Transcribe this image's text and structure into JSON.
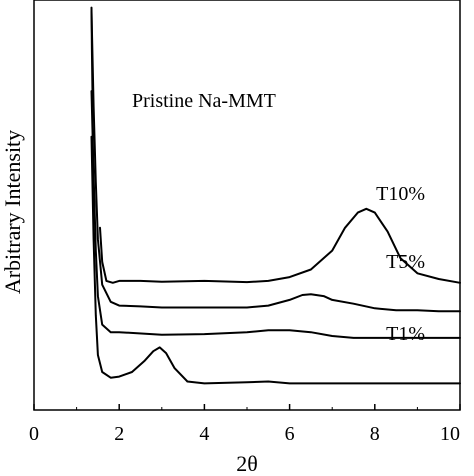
{
  "chart_data": {
    "type": "line",
    "title": "",
    "xlabel": "2θ",
    "ylabel": "Arbitrary Intensity",
    "xlim": [
      0,
      10
    ],
    "x_ticks": [
      "0",
      "2",
      "4",
      "6",
      "8",
      "10"
    ],
    "y_ticks_labeled": false,
    "grid": false,
    "legend": "none",
    "line_color": "#000000",
    "series": [
      {
        "name": "Pristine Na-MMT",
        "label": "Pristine Na-MMT",
        "x": [
          1.55,
          1.6,
          1.7,
          1.85,
          2.0,
          2.5,
          3.0,
          4.0,
          5.0,
          5.5,
          6.0,
          6.5,
          7.0,
          7.3,
          7.6,
          7.8,
          8.0,
          8.3,
          8.6,
          9.0,
          9.5,
          10.0
        ],
        "y": [
          0.48,
          0.39,
          0.34,
          0.335,
          0.34,
          0.34,
          0.338,
          0.34,
          0.337,
          0.34,
          0.35,
          0.37,
          0.42,
          0.48,
          0.52,
          0.53,
          0.52,
          0.47,
          0.4,
          0.36,
          0.345,
          0.335
        ]
      },
      {
        "name": "T10%",
        "label": "T10%",
        "x": [
          1.35,
          1.4,
          1.45,
          1.5,
          1.6,
          1.8,
          2.0,
          2.5,
          3.0,
          4.0,
          5.0,
          5.5,
          6.0,
          6.3,
          6.5,
          6.8,
          7.0,
          7.5,
          8.0,
          8.5,
          9.0,
          9.5,
          10.0
        ],
        "y": [
          1.05,
          0.8,
          0.6,
          0.45,
          0.33,
          0.285,
          0.275,
          0.273,
          0.27,
          0.27,
          0.27,
          0.275,
          0.29,
          0.303,
          0.305,
          0.3,
          0.29,
          0.28,
          0.268,
          0.263,
          0.263,
          0.26,
          0.26
        ]
      },
      {
        "name": "T5%",
        "label": "T5%",
        "x": [
          1.35,
          1.4,
          1.45,
          1.5,
          1.6,
          1.8,
          2.0,
          3.0,
          4.0,
          5.0,
          5.5,
          6.0,
          6.5,
          7.0,
          7.5,
          8.0,
          9.0,
          10.0
        ],
        "y": [
          0.84,
          0.62,
          0.42,
          0.3,
          0.225,
          0.205,
          0.205,
          0.198,
          0.2,
          0.205,
          0.21,
          0.21,
          0.205,
          0.195,
          0.19,
          0.19,
          0.19,
          0.19
        ]
      },
      {
        "name": "T1%",
        "label": "T1%",
        "x": [
          1.35,
          1.4,
          1.45,
          1.5,
          1.6,
          1.8,
          2.0,
          2.3,
          2.6,
          2.8,
          2.95,
          3.1,
          3.3,
          3.6,
          4.0,
          5.0,
          5.5,
          6.0,
          7.0,
          8.0,
          9.0,
          10.0
        ],
        "y": [
          0.72,
          0.45,
          0.25,
          0.145,
          0.1,
          0.085,
          0.088,
          0.1,
          0.13,
          0.155,
          0.165,
          0.15,
          0.11,
          0.075,
          0.07,
          0.073,
          0.075,
          0.07,
          0.07,
          0.07,
          0.07,
          0.07
        ]
      },
      {
        "name": "",
        "label": "",
        "x": [
          1.35,
          1.36,
          1.37,
          1.38
        ],
        "y": [
          1.06,
          0.95,
          0.85,
          0.8
        ]
      }
    ]
  }
}
